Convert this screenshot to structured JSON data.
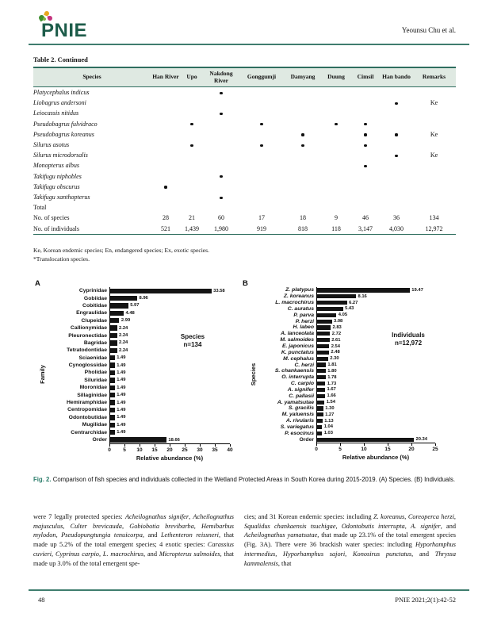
{
  "header": {
    "logo_text": "PNIE",
    "author_line": "Yeounsu Chu et al.",
    "brand_color": "#1d5c4a",
    "rule_color": "#3f7d6e"
  },
  "table": {
    "title": "Table 2. Continued",
    "columns": [
      "Species",
      "Han River",
      "Upo",
      "Nakdong River",
      "Gonggumji",
      "Damyang",
      "Duung",
      "Cimsil",
      "Han bando",
      "Remarks"
    ],
    "rows": [
      {
        "species": "Platycephalus indicus",
        "presence": [
          0,
          0,
          1,
          0,
          0,
          0,
          0,
          0
        ],
        "remarks": ""
      },
      {
        "species": "Liobagrus andersoni",
        "presence": [
          0,
          0,
          0,
          0,
          0,
          0,
          0,
          1
        ],
        "remarks": "Ke"
      },
      {
        "species": "Leiocassis nitidus",
        "presence": [
          0,
          0,
          1,
          0,
          0,
          0,
          0,
          0
        ],
        "remarks": ""
      },
      {
        "species": "Pseudobagrus fulvidraco",
        "presence": [
          0,
          1,
          0,
          1,
          0,
          1,
          1,
          0
        ],
        "remarks": ""
      },
      {
        "species": "Pseudobagrus koreanus",
        "presence": [
          0,
          0,
          0,
          0,
          1,
          0,
          1,
          1
        ],
        "remarks": "Ke"
      },
      {
        "species": "Silurus asotus",
        "presence": [
          0,
          1,
          0,
          1,
          1,
          0,
          1,
          0
        ],
        "remarks": ""
      },
      {
        "species": "Silurus microdorsalis",
        "presence": [
          0,
          0,
          0,
          0,
          0,
          0,
          0,
          1
        ],
        "remarks": "Ke"
      },
      {
        "species": "Monopterus albus",
        "presence": [
          0,
          0,
          0,
          0,
          0,
          0,
          1,
          0
        ],
        "remarks": ""
      },
      {
        "species": "Takifugu niphobles",
        "presence": [
          0,
          0,
          1,
          0,
          0,
          0,
          0,
          0
        ],
        "remarks": ""
      },
      {
        "species": "Takifugu obscurus",
        "presence": [
          1,
          0,
          0,
          0,
          0,
          0,
          0,
          0
        ],
        "remarks": ""
      },
      {
        "species": "Takifugu xanthopterus",
        "presence": [
          0,
          0,
          1,
          0,
          0,
          0,
          0,
          0
        ],
        "remarks": ""
      }
    ],
    "total_label": "Total",
    "summary_rows": [
      {
        "label": "No. of species",
        "values": [
          "28",
          "21",
          "60",
          "17",
          "18",
          "9",
          "46",
          "36",
          "134"
        ]
      },
      {
        "label": "No. of individuals",
        "values": [
          "521",
          "1,439",
          "1,980",
          "919",
          "818",
          "118",
          "3,147",
          "4,030",
          "12,972"
        ]
      }
    ],
    "footnote1": "Ke, Korean endemic species; En, endangered species; Ex, exotic species.",
    "footnote2": "*Translocation species."
  },
  "chart_data": [
    {
      "id": "A",
      "type": "bar",
      "orientation": "horizontal",
      "panel_label": "A",
      "categories": [
        "Cyprinidae",
        "Gobiidae",
        "Cobitidae",
        "Engraulidae",
        "Clupeidae",
        "Callionymidae",
        "Pleuronectidae",
        "Bagridae",
        "Tetratodontidae",
        "Sciaenidae",
        "Cynoglossidae",
        "Pholidae",
        "Siluridae",
        "Moronidae",
        "Sillaginidae",
        "Hemiramphidae",
        "Centropomidae",
        "Odontobutidae",
        "Mugilidae",
        "Centrarchidae",
        "Order"
      ],
      "values": [
        33.58,
        8.96,
        5.97,
        4.48,
        2.99,
        2.24,
        2.24,
        2.24,
        2.24,
        1.49,
        1.49,
        1.49,
        1.49,
        1.49,
        1.49,
        1.49,
        1.49,
        1.49,
        1.49,
        1.49,
        18.66
      ],
      "annotation": [
        "Species",
        "n=134"
      ],
      "xlabel": "Relative abundance (%)",
      "ylabel": "Family",
      "xlim": [
        0,
        40
      ],
      "xticks": [
        0,
        5,
        10,
        15,
        20,
        25,
        30,
        35,
        40
      ],
      "bar_color": "#141414",
      "italic_labels": false
    },
    {
      "id": "B",
      "type": "bar",
      "orientation": "horizontal",
      "panel_label": "B",
      "categories": [
        "Z. platypus",
        "Z. koreanus",
        "L. macrochirus",
        "C. auratus",
        "P. parva",
        "P. herzi",
        "H. labeo",
        "A. lanceolata",
        "M. salmoides",
        "E. japonicus",
        "K. punctatus",
        "M. cephalus",
        "C. herzi",
        "S. chankaensis",
        "O. interrupta",
        "C. carpio",
        "A. signifer",
        "C. pallasii",
        "A. yamatsutae",
        "S. gracilis",
        "M. yaluensis",
        "A. rivularis",
        "S. variegatus",
        "P. esocinus",
        "Order"
      ],
      "values": [
        19.47,
        8.16,
        6.27,
        5.43,
        4.05,
        3.08,
        2.83,
        2.72,
        2.61,
        2.54,
        2.48,
        2.3,
        1.81,
        1.8,
        1.78,
        1.73,
        1.67,
        1.66,
        1.54,
        1.3,
        1.27,
        1.13,
        1.04,
        1.03,
        20.34
      ],
      "annotation": [
        "Individuals",
        "n=12,972"
      ],
      "xlabel": "Relative abundance (%)",
      "ylabel": "Species",
      "xlim": [
        0,
        25
      ],
      "xticks": [
        0,
        5,
        10,
        15,
        20,
        25
      ],
      "bar_color": "#141414",
      "italic_labels": true
    }
  ],
  "caption": {
    "label": "Fig. 2.",
    "text": " Comparison of fish species and individuals collected in the Wetland Protected Areas in South Korea during 2015-2019. (A) Species. (B) Individuals."
  },
  "body": {
    "left_segments": [
      {
        "t": "were 7 legally protected species: "
      },
      {
        "t": "Acheilognathus signifer",
        "i": true
      },
      {
        "t": ", "
      },
      {
        "t": "Acheilognathus majusculus",
        "i": true
      },
      {
        "t": ", "
      },
      {
        "t": "Culter brevicauda",
        "i": true
      },
      {
        "t": ", "
      },
      {
        "t": "Gobiobotia brevibarba",
        "i": true
      },
      {
        "t": ", "
      },
      {
        "t": "Hemibarbus mylodon",
        "i": true
      },
      {
        "t": ", "
      },
      {
        "t": "Pseudopungtungia tenuicorpa",
        "i": true
      },
      {
        "t": ", and "
      },
      {
        "t": "Lethenteron reissneri",
        "i": true
      },
      {
        "t": ", that made up 5.2% of the total emergent species; 4 exotic species: "
      },
      {
        "t": "Carassius cuvieri",
        "i": true
      },
      {
        "t": ", "
      },
      {
        "t": "Cyprinus carpio",
        "i": true
      },
      {
        "t": ", "
      },
      {
        "t": "L. macrochirus",
        "i": true
      },
      {
        "t": ", and "
      },
      {
        "t": "Micropterus salmoides",
        "i": true
      },
      {
        "t": ", that made up 3.0% of the total emergent spe-"
      }
    ],
    "right_segments": [
      {
        "t": "cies; and 31 Korean endemic species: including "
      },
      {
        "t": "Z. koreanus",
        "i": true
      },
      {
        "t": ", "
      },
      {
        "t": "Coreoperca herzi",
        "i": true
      },
      {
        "t": ", "
      },
      {
        "t": "Squalidus chankaensis tsuchigae",
        "i": true
      },
      {
        "t": ", "
      },
      {
        "t": "Odontobutis interrupta",
        "i": true
      },
      {
        "t": ", "
      },
      {
        "t": "A. signifer",
        "i": true
      },
      {
        "t": ", and "
      },
      {
        "t": "Acheilognathus yamatsutae",
        "i": true
      },
      {
        "t": ", that made up 23.1% of the total emergent species (Fig. 3A). There were 36 brackish water species: including "
      },
      {
        "t": "Hyporhamphus intermedius",
        "i": true
      },
      {
        "t": ", "
      },
      {
        "t": "Hyporhamphus sajori",
        "i": true
      },
      {
        "t": ", "
      },
      {
        "t": "Konosirus punctatus",
        "i": true
      },
      {
        "t": ", and "
      },
      {
        "t": "Thryssa kammalensis",
        "i": true
      },
      {
        "t": ", that"
      }
    ]
  },
  "footer": {
    "page_number": "48",
    "citation": "PNIE 2021;2(1):42-52"
  }
}
